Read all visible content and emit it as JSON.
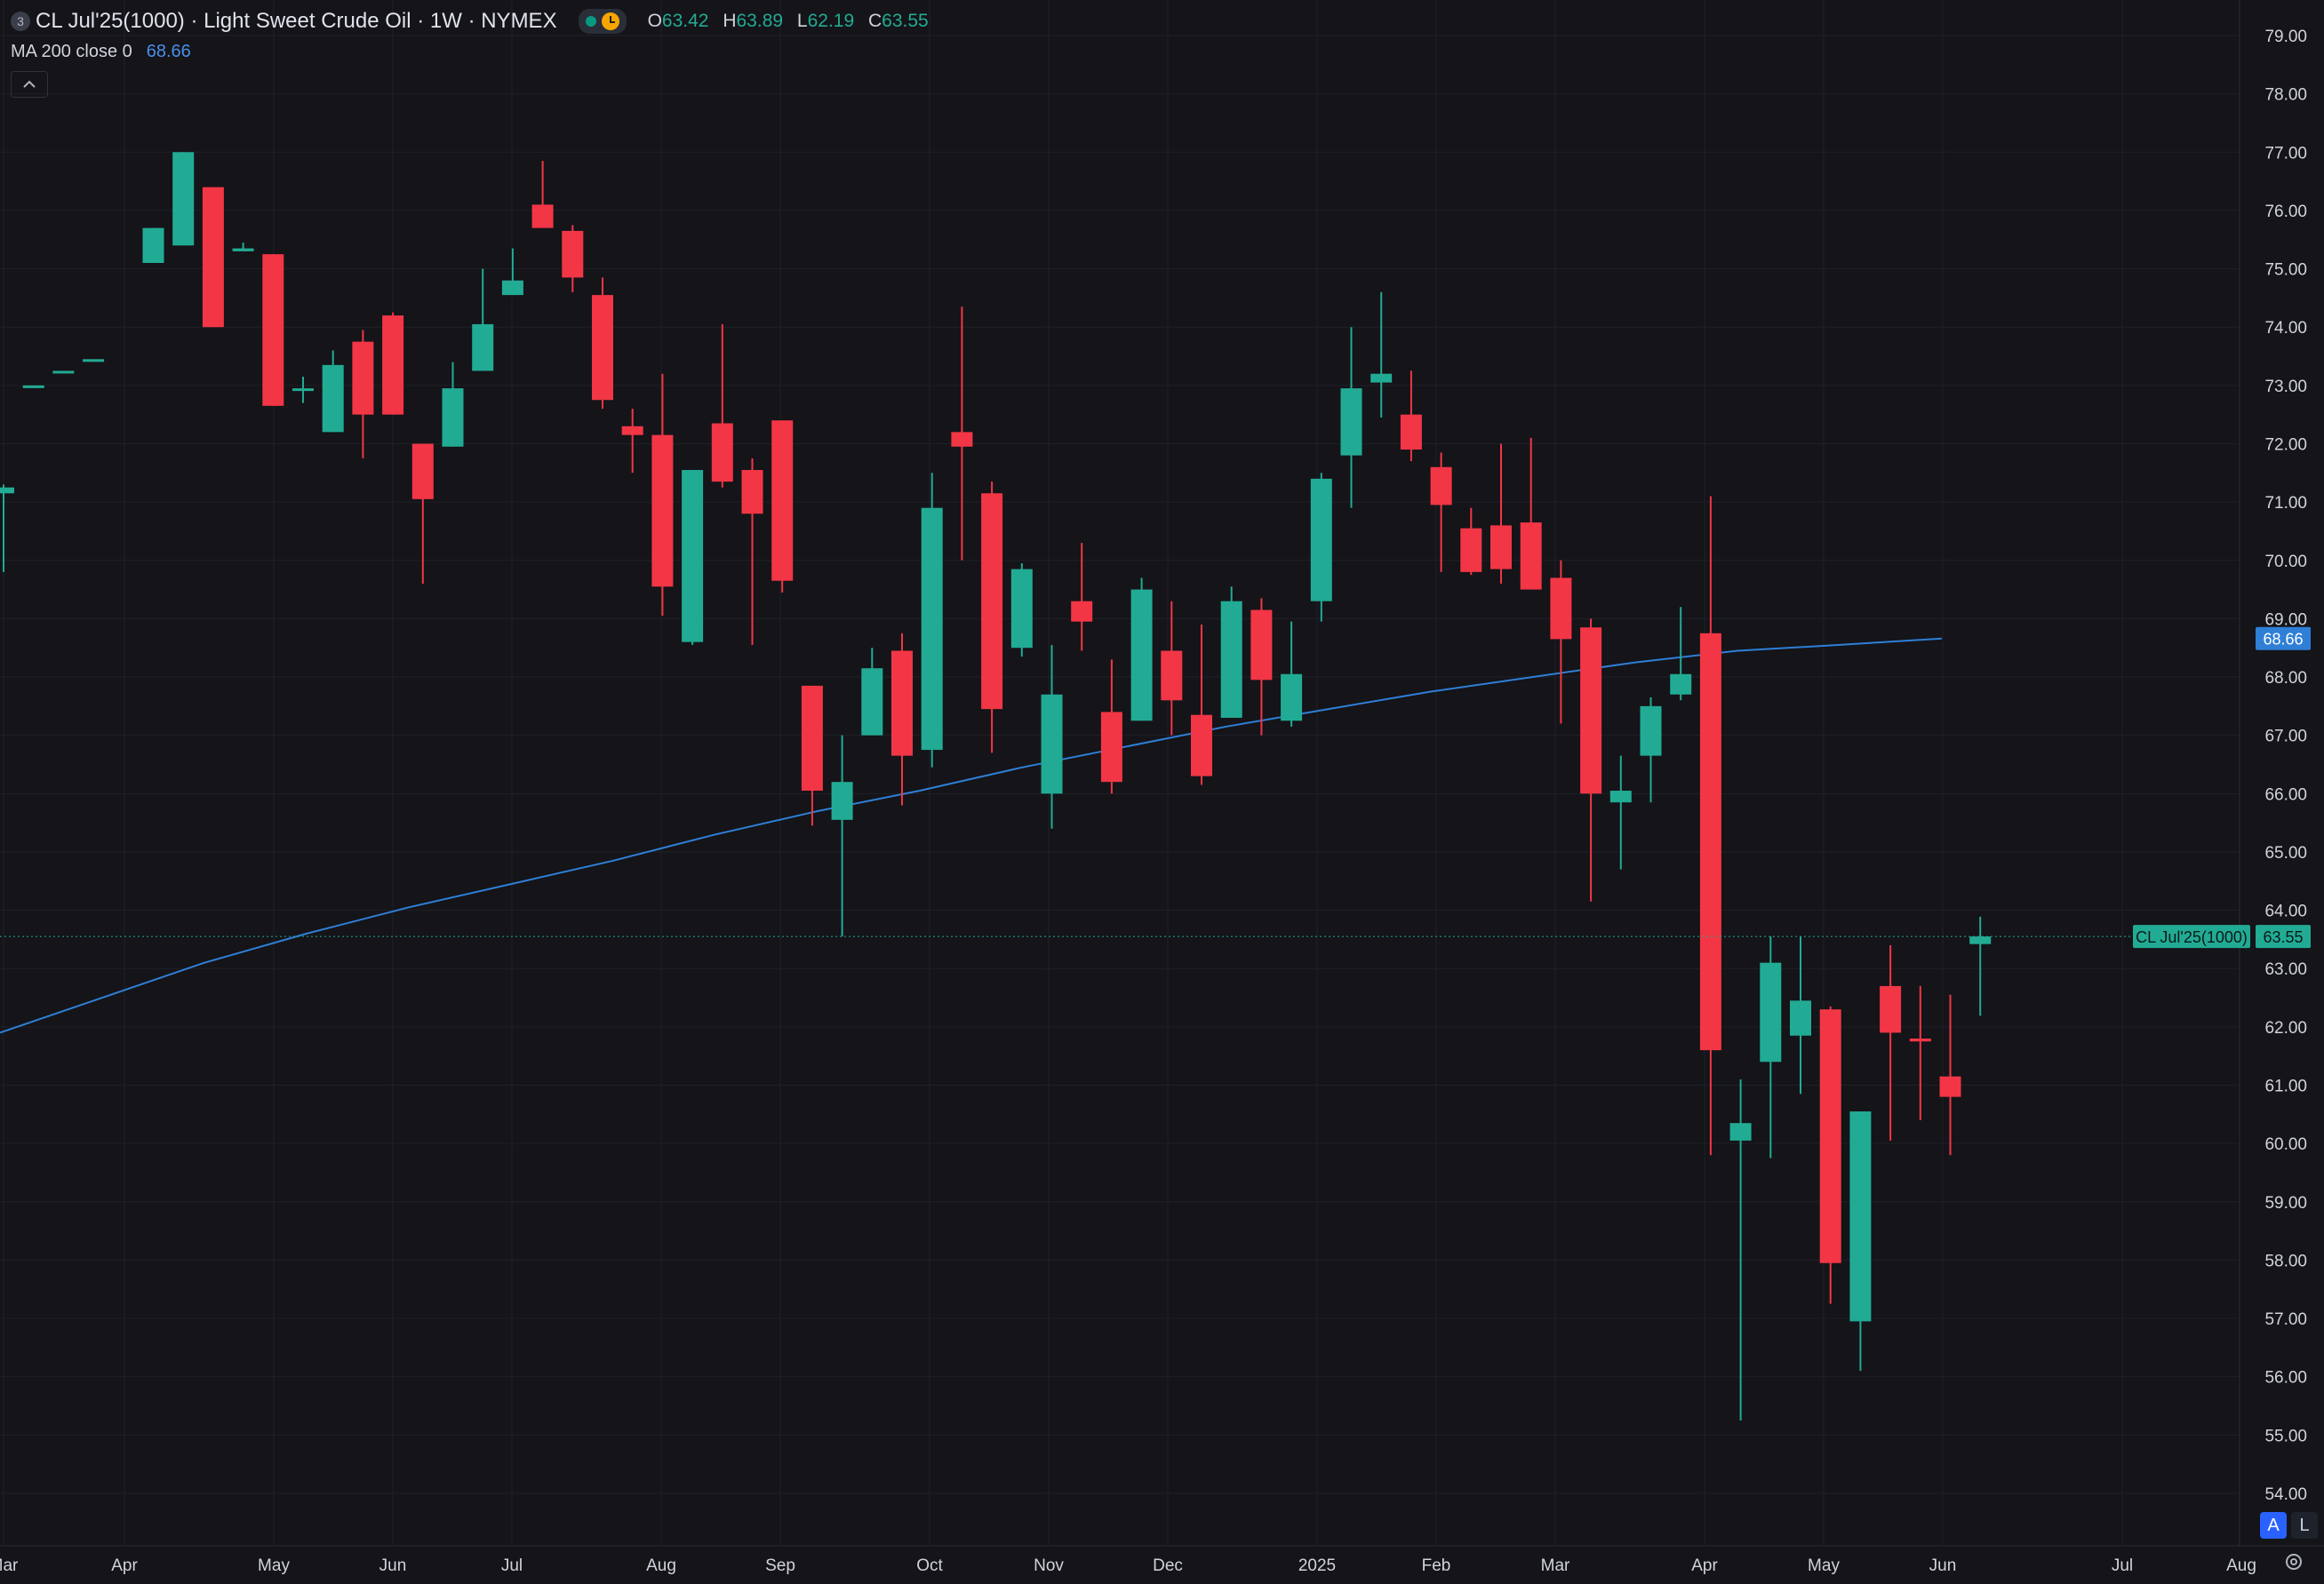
{
  "legend": {
    "symbol_badge": "3",
    "title": "CL Jul'25(1000) · Light Sweet Crude Oil · 1W · NYMEX",
    "open_label": "O",
    "open": "63.42",
    "high_label": "H",
    "high": "63.89",
    "low_label": "L",
    "low": "62.19",
    "close_label": "C",
    "close": "63.55",
    "ma_label": "MA 200 close 0",
    "ma_value": "68.66",
    "collapse_icon": "chevron-up-icon"
  },
  "price_tag": {
    "label": "CL Jul'25(1000)",
    "value": "63.55"
  },
  "ma_tag": {
    "value": "68.66"
  },
  "buttons": {
    "auto": "A",
    "log": "L"
  },
  "colors": {
    "background": "#141419",
    "up": "#22ab94",
    "down": "#f23645",
    "ma": "#2f7fd6",
    "grid": "#1f2129",
    "axis_text": "#d1d4dc"
  },
  "chart_data": {
    "type": "candlestick",
    "title": "CL Jul'25(1000) · Light Sweet Crude Oil · 1W · NYMEX",
    "ylim": [
      53.6,
      79.4
    ],
    "y_ticks": [
      "79.00",
      "78.00",
      "77.00",
      "76.00",
      "75.00",
      "74.00",
      "73.00",
      "72.00",
      "71.00",
      "70.00",
      "69.00",
      "68.00",
      "67.00",
      "66.00",
      "65.00",
      "64.00",
      "63.00",
      "62.00",
      "61.00",
      "60.00",
      "59.00",
      "58.00",
      "57.00",
      "56.00",
      "55.00",
      "54.00"
    ],
    "x_ticks": [
      "Mar",
      "Apr",
      "May",
      "Jun",
      "Jul",
      "Aug",
      "Sep",
      "Oct",
      "Nov",
      "Dec",
      "2025",
      "Feb",
      "Mar",
      "Apr",
      "May",
      "Jun",
      "Jul",
      "Aug"
    ],
    "last_price": 63.55,
    "candles": [
      {
        "o": 71.15,
        "h": 71.3,
        "l": 69.8,
        "c": 71.25
      },
      {
        "o": 73.0,
        "h": 73.0,
        "l": 73.0,
        "c": 73.0
      },
      {
        "o": 73.25,
        "h": 73.25,
        "l": 73.25,
        "c": 73.25
      },
      {
        "o": 73.45,
        "h": 73.45,
        "l": 73.45,
        "c": 73.45
      },
      {
        "o": null,
        "h": null,
        "l": null,
        "c": null
      },
      {
        "o": 75.1,
        "h": 75.7,
        "l": 75.1,
        "c": 75.7
      },
      {
        "o": 75.4,
        "h": 77.0,
        "l": 75.4,
        "c": 77.0
      },
      {
        "o": 76.4,
        "h": 76.4,
        "l": 74.0,
        "c": 74.0
      },
      {
        "o": 75.3,
        "h": 75.45,
        "l": 75.3,
        "c": 75.35
      },
      {
        "o": 75.25,
        "h": 75.25,
        "l": 72.65,
        "c": 72.65
      },
      {
        "o": 72.95,
        "h": 73.15,
        "l": 72.7,
        "c": 72.95
      },
      {
        "o": 72.2,
        "h": 73.6,
        "l": 72.2,
        "c": 73.35
      },
      {
        "o": 73.75,
        "h": 73.95,
        "l": 71.75,
        "c": 72.5
      },
      {
        "o": 74.2,
        "h": 74.25,
        "l": 72.5,
        "c": 72.5
      },
      {
        "o": 72.0,
        "h": 72.0,
        "l": 69.6,
        "c": 71.05
      },
      {
        "o": 71.95,
        "h": 73.4,
        "l": 71.95,
        "c": 72.95
      },
      {
        "o": 73.25,
        "h": 75.0,
        "l": 73.25,
        "c": 74.05
      },
      {
        "o": 74.55,
        "h": 75.35,
        "l": 74.55,
        "c": 74.8
      },
      {
        "o": 76.1,
        "h": 76.85,
        "l": 75.75,
        "c": 75.7
      },
      {
        "o": 75.65,
        "h": 75.75,
        "l": 74.6,
        "c": 74.85
      },
      {
        "o": 74.55,
        "h": 74.85,
        "l": 72.6,
        "c": 72.75
      },
      {
        "o": 72.3,
        "h": 72.6,
        "l": 71.5,
        "c": 72.15
      },
      {
        "o": 72.15,
        "h": 73.2,
        "l": 69.05,
        "c": 69.55
      },
      {
        "o": 68.6,
        "h": 71.55,
        "l": 68.55,
        "c": 71.55
      },
      {
        "o": 72.35,
        "h": 74.05,
        "l": 71.25,
        "c": 71.35
      },
      {
        "o": 71.55,
        "h": 71.75,
        "l": 68.55,
        "c": 70.8
      },
      {
        "o": 72.4,
        "h": 72.4,
        "l": 69.45,
        "c": 69.65
      },
      {
        "o": 67.85,
        "h": 67.85,
        "l": 65.45,
        "c": 66.05
      },
      {
        "o": 65.55,
        "h": 67.0,
        "l": 63.55,
        "c": 66.2
      },
      {
        "o": 67.0,
        "h": 68.5,
        "l": 67.0,
        "c": 68.15
      },
      {
        "o": 68.45,
        "h": 68.75,
        "l": 65.8,
        "c": 66.65
      },
      {
        "o": 66.75,
        "h": 71.5,
        "l": 66.45,
        "c": 70.9
      },
      {
        "o": 72.2,
        "h": 74.35,
        "l": 70.0,
        "c": 71.95
      },
      {
        "o": 71.15,
        "h": 71.35,
        "l": 66.7,
        "c": 67.45
      },
      {
        "o": 68.5,
        "h": 69.95,
        "l": 68.35,
        "c": 69.85
      },
      {
        "o": 66.0,
        "h": 68.55,
        "l": 65.4,
        "c": 67.7
      },
      {
        "o": 69.3,
        "h": 70.3,
        "l": 68.45,
        "c": 68.95
      },
      {
        "o": 67.4,
        "h": 68.3,
        "l": 66.0,
        "c": 66.2
      },
      {
        "o": 67.25,
        "h": 69.7,
        "l": 67.25,
        "c": 69.5
      },
      {
        "o": 68.45,
        "h": 69.3,
        "l": 67.0,
        "c": 67.6
      },
      {
        "o": 67.35,
        "h": 68.9,
        "l": 66.15,
        "c": 66.3
      },
      {
        "o": 67.3,
        "h": 69.55,
        "l": 67.3,
        "c": 69.3
      },
      {
        "o": 69.15,
        "h": 69.35,
        "l": 67.0,
        "c": 67.95
      },
      {
        "o": 67.25,
        "h": 68.95,
        "l": 67.15,
        "c": 68.05
      },
      {
        "o": 69.3,
        "h": 71.5,
        "l": 68.95,
        "c": 71.4
      },
      {
        "o": 71.8,
        "h": 74.0,
        "l": 70.9,
        "c": 72.95
      },
      {
        "o": 73.05,
        "h": 74.6,
        "l": 72.45,
        "c": 73.2
      },
      {
        "o": 72.5,
        "h": 73.25,
        "l": 71.7,
        "c": 71.9
      },
      {
        "o": 71.6,
        "h": 71.85,
        "l": 69.8,
        "c": 70.95
      },
      {
        "o": 70.55,
        "h": 70.9,
        "l": 69.75,
        "c": 69.8
      },
      {
        "o": 70.6,
        "h": 72.0,
        "l": 69.6,
        "c": 69.85
      },
      {
        "o": 70.65,
        "h": 72.1,
        "l": 69.55,
        "c": 69.5
      },
      {
        "o": 69.7,
        "h": 70.0,
        "l": 67.2,
        "c": 68.65
      },
      {
        "o": 68.85,
        "h": 69.0,
        "l": 64.15,
        "c": 66.0
      },
      {
        "o": 65.85,
        "h": 66.65,
        "l": 64.7,
        "c": 66.05
      },
      {
        "o": 66.65,
        "h": 67.65,
        "l": 65.85,
        "c": 67.5
      },
      {
        "o": 67.7,
        "h": 69.2,
        "l": 67.6,
        "c": 68.05
      },
      {
        "o": 68.75,
        "h": 71.1,
        "l": 59.8,
        "c": 61.6
      },
      {
        "o": 60.05,
        "h": 61.1,
        "l": 55.25,
        "c": 60.35
      },
      {
        "o": 61.4,
        "h": 63.55,
        "l": 59.75,
        "c": 63.1
      },
      {
        "o": 61.85,
        "h": 63.55,
        "l": 60.85,
        "c": 62.45
      },
      {
        "o": 62.3,
        "h": 62.35,
        "l": 57.25,
        "c": 57.95
      },
      {
        "o": 56.95,
        "h": 60.55,
        "l": 56.1,
        "c": 60.55
      },
      {
        "o": 62.7,
        "h": 63.4,
        "l": 60.05,
        "c": 61.9
      },
      {
        "o": 61.8,
        "h": 62.7,
        "l": 60.4,
        "c": 61.75
      },
      {
        "o": 61.15,
        "h": 62.55,
        "l": 59.8,
        "c": 60.8
      },
      {
        "o": 63.42,
        "h": 63.89,
        "l": 62.19,
        "c": 63.55
      }
    ],
    "ma200": [
      [
        0,
        61.9
      ],
      [
        5,
        62.5
      ],
      [
        10,
        63.1
      ],
      [
        15,
        63.6
      ],
      [
        20,
        64.05
      ],
      [
        25,
        64.45
      ],
      [
        30,
        64.85
      ],
      [
        35,
        65.3
      ],
      [
        40,
        65.7
      ],
      [
        45,
        66.05
      ],
      [
        50,
        66.45
      ],
      [
        55,
        66.8
      ],
      [
        60,
        67.15
      ],
      [
        65,
        67.45
      ],
      [
        70,
        67.75
      ],
      [
        75,
        68.0
      ],
      [
        80,
        68.25
      ],
      [
        85,
        68.45
      ],
      [
        90,
        68.55
      ],
      [
        95,
        68.66
      ]
    ]
  }
}
